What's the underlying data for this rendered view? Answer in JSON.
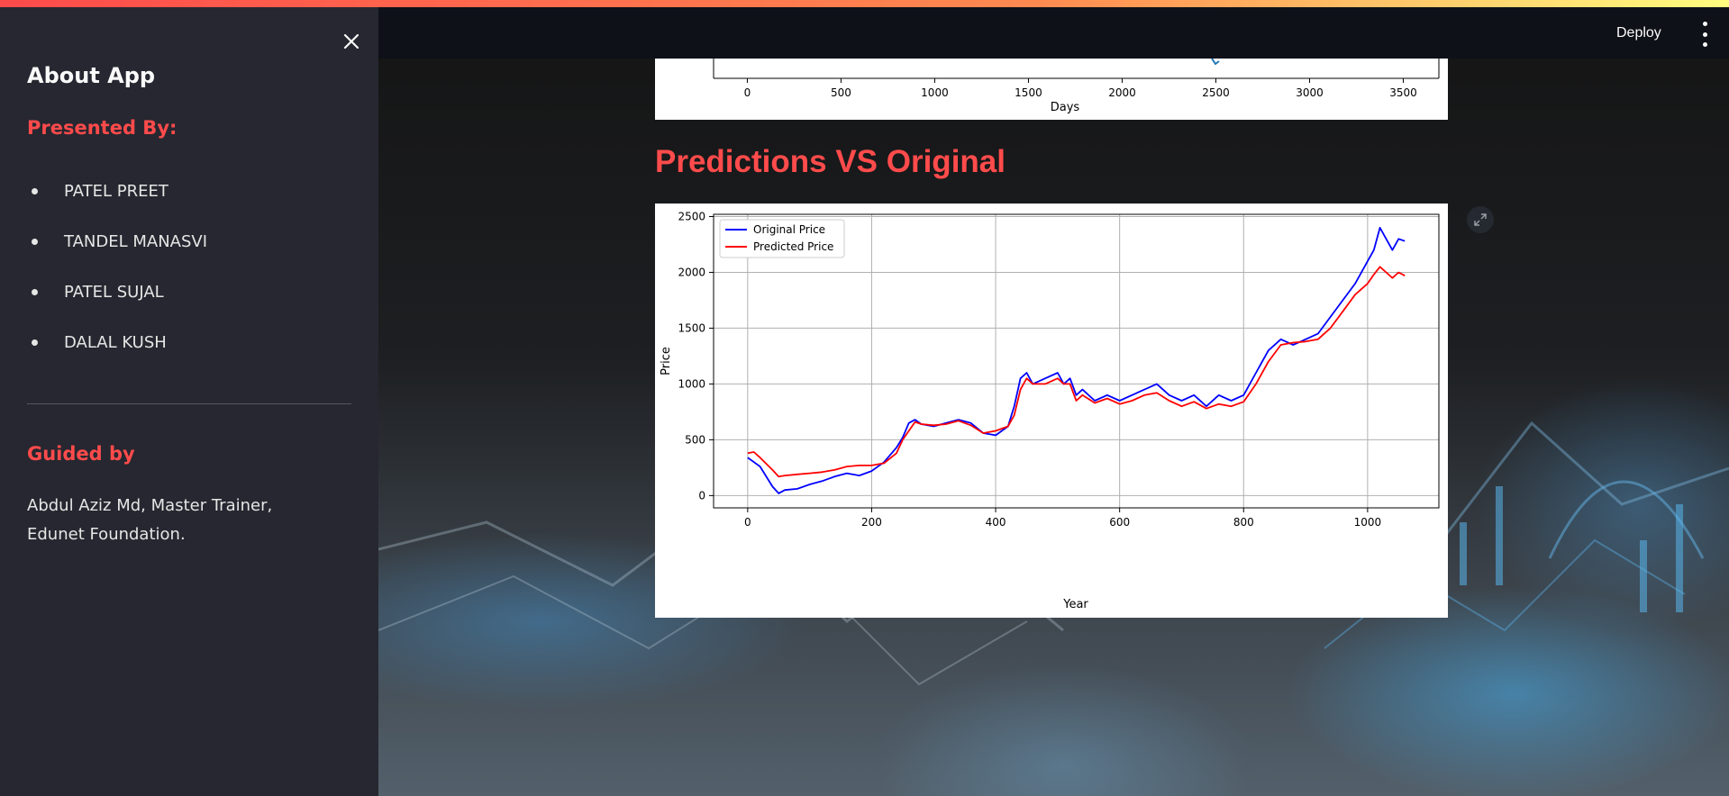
{
  "sidebar": {
    "title": "About App",
    "presented_label": "Presented By:",
    "members": [
      "PATEL PREET",
      "TANDEL MANASVI",
      "PATEL SUJAL",
      "DALAL KUSH"
    ],
    "guided_label": "Guided by",
    "guided_text": "Abdul Aziz Md, Master Trainer, Edunet Foundation.",
    "close_icon": "close-icon"
  },
  "header": {
    "deploy_label": "Deploy",
    "menu_icon": "more-vertical-icon",
    "accent_gradient": [
      "#ff4b4b",
      "#fffd80"
    ]
  },
  "main": {
    "section_title": "Predictions VS Original",
    "expand_icon": "fullscreen-icon"
  },
  "colors": {
    "accent": "#ff4b4b",
    "sidebar_bg": "#262730",
    "header_bg": "#0e1117"
  },
  "chart_data": [
    {
      "type": "line",
      "partially_visible": true,
      "xlabel": "Days",
      "ylabel": "",
      "x_ticks": [
        0,
        500,
        1000,
        1500,
        2000,
        2500,
        3000,
        3500
      ],
      "xlim": [
        -180,
        3690
      ]
    },
    {
      "type": "line",
      "title": "",
      "xlabel": "Year",
      "ylabel": "Price",
      "xlim": [
        -55,
        1115
      ],
      "ylim": [
        -110,
        2520
      ],
      "x_ticks": [
        0,
        200,
        400,
        600,
        800,
        1000
      ],
      "y_ticks": [
        0,
        500,
        1000,
        1500,
        2000,
        2500
      ],
      "grid": true,
      "legend_position": "top-left",
      "series": [
        {
          "name": "Original Price",
          "color": "#0000ff",
          "x": [
            0,
            20,
            40,
            50,
            60,
            80,
            100,
            120,
            140,
            160,
            180,
            200,
            220,
            240,
            250,
            260,
            270,
            280,
            300,
            320,
            340,
            360,
            380,
            400,
            420,
            430,
            440,
            450,
            460,
            480,
            500,
            510,
            520,
            530,
            540,
            560,
            580,
            600,
            620,
            640,
            660,
            680,
            700,
            720,
            740,
            760,
            780,
            800,
            820,
            840,
            860,
            880,
            900,
            920,
            940,
            960,
            980,
            1000,
            1010,
            1020,
            1030,
            1040,
            1050,
            1060
          ],
          "values": [
            340,
            260,
            80,
            20,
            50,
            60,
            100,
            130,
            170,
            200,
            180,
            220,
            300,
            430,
            520,
            650,
            680,
            640,
            620,
            650,
            680,
            650,
            560,
            540,
            620,
            800,
            1050,
            1100,
            1000,
            1050,
            1100,
            1000,
            1050,
            900,
            950,
            850,
            900,
            850,
            900,
            950,
            1000,
            900,
            850,
            900,
            800,
            900,
            850,
            900,
            1100,
            1300,
            1400,
            1350,
            1400,
            1450,
            1600,
            1750,
            1900,
            2100,
            2200,
            2400,
            2300,
            2200,
            2300,
            2280
          ]
        },
        {
          "name": "Predicted Price",
          "color": "#ff0000",
          "x": [
            0,
            10,
            20,
            40,
            50,
            60,
            80,
            100,
            120,
            140,
            160,
            180,
            200,
            220,
            240,
            250,
            260,
            270,
            280,
            300,
            320,
            340,
            360,
            380,
            400,
            420,
            430,
            440,
            450,
            460,
            480,
            500,
            510,
            520,
            530,
            540,
            560,
            580,
            600,
            620,
            640,
            660,
            680,
            700,
            720,
            740,
            760,
            780,
            800,
            820,
            840,
            860,
            880,
            900,
            920,
            940,
            960,
            980,
            1000,
            1010,
            1020,
            1030,
            1040,
            1050,
            1060
          ],
          "values": [
            380,
            390,
            340,
            230,
            170,
            180,
            190,
            200,
            210,
            230,
            260,
            270,
            270,
            290,
            380,
            500,
            580,
            660,
            640,
            630,
            640,
            670,
            630,
            560,
            580,
            620,
            720,
            950,
            1050,
            1000,
            1000,
            1050,
            1000,
            1000,
            850,
            900,
            830,
            870,
            820,
            850,
            900,
            920,
            850,
            800,
            840,
            780,
            820,
            800,
            840,
            1000,
            1200,
            1350,
            1370,
            1380,
            1400,
            1500,
            1650,
            1800,
            1900,
            1980,
            2050,
            2000,
            1950,
            2000,
            1970
          ]
        }
      ]
    }
  ]
}
